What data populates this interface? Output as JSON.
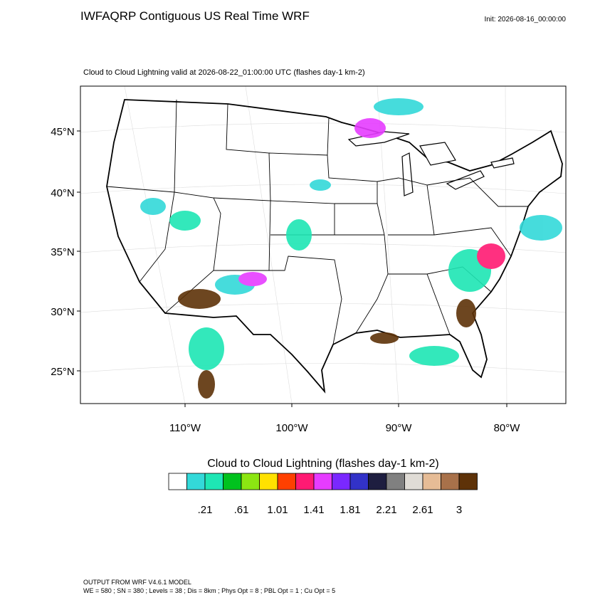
{
  "header": {
    "title": "IWFAQRP Contiguous US Real Time WRF",
    "init": "Init: 2026-08-16_00:00:00"
  },
  "map": {
    "subtitle": "Cloud to Cloud Lightning valid at 2026-08-22_01:00:00 UTC   (flashes day-1 km-2)",
    "lat_labels": [
      "45°N",
      "40°N",
      "35°N",
      "30°N",
      "25°N"
    ],
    "lon_labels": [
      "110°W",
      "100°W",
      "90°W",
      "80°W"
    ]
  },
  "colorbar": {
    "title": "Cloud to Cloud Lightning  (flashes day-1 km-2)",
    "colors": [
      "#ffffff",
      "#33d9d9",
      "#1ee6b4",
      "#00c21e",
      "#8ce612",
      "#ffe100",
      "#ff4000",
      "#ff1a73",
      "#e63cff",
      "#7a28ff",
      "#3232c8",
      "#1e1e40",
      "#808080",
      "#e0dcd6",
      "#e6bc96",
      "#a8714a",
      "#5e3208"
    ],
    "labels": [
      ".21",
      ".61",
      "1.01",
      "1.41",
      "1.81",
      "2.21",
      "2.61",
      "3"
    ]
  },
  "footer": {
    "lines": [
      "OUTPUT FROM WRF V4.6.1 MODEL",
      "WE = 580 ; SN = 380 ; Levels = 38 ; Dis = 8km ; Phys Opt = 8 ; PBL Opt = 1 ; Cu Opt = 5"
    ]
  }
}
